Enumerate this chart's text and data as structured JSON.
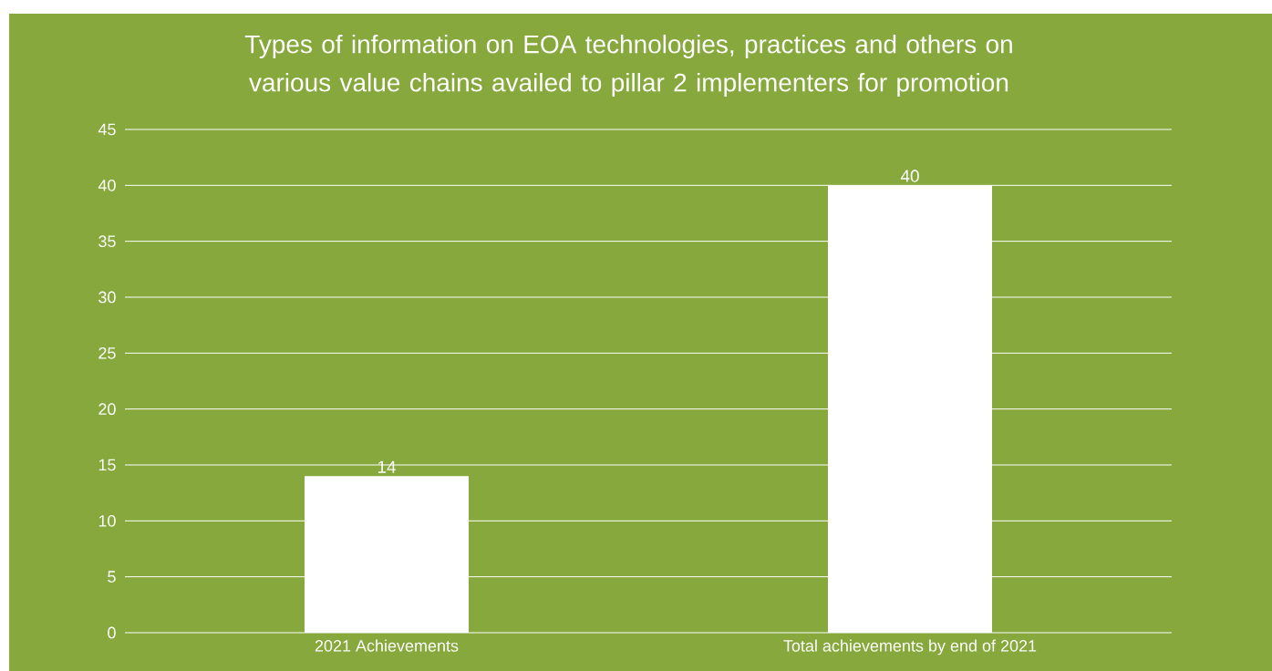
{
  "chart_data": {
    "type": "bar",
    "title": "Types of information on EOA technologies, practices and others on various value chains availed to pillar 2 implementers for promotion",
    "categories": [
      "2021 Achievements",
      "Total achievements by end of 2021"
    ],
    "values": [
      14,
      40
    ],
    "color": "#ffffff",
    "ylim": [
      0,
      45
    ],
    "yticks": [
      0,
      5,
      10,
      15,
      20,
      25,
      30,
      35,
      40,
      45
    ],
    "grid": "y",
    "data_labels": true
  }
}
